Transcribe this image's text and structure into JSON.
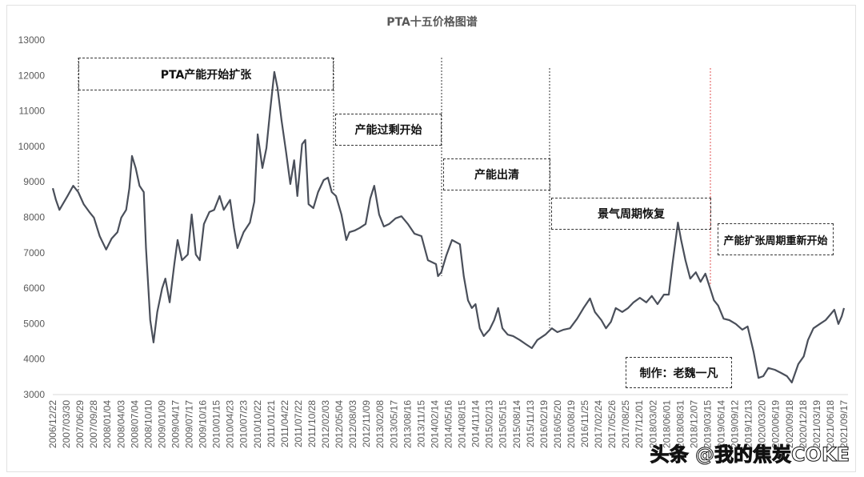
{
  "chart_data": {
    "type": "line",
    "title": "PTA十五价格图谱",
    "xlabel": "",
    "ylabel": "",
    "ylim": [
      3000,
      13000
    ],
    "yticks": [
      3000,
      4000,
      5000,
      6000,
      7000,
      8000,
      9000,
      10000,
      11000,
      12000,
      13000
    ],
    "grid": false,
    "line_color": "#4a4f5a",
    "xtick_labels": [
      "2006/12/22",
      "2007/03/30",
      "2007/06/29",
      "2007/09/28",
      "2008/01/04",
      "2008/04/03",
      "2008/07/04",
      "2008/10/10",
      "2009/01/09",
      "2009/04/17",
      "2009/07/17",
      "2009/10/16",
      "2010/01/15",
      "2010/04/23",
      "2010/07/23",
      "2010/10/22",
      "2011/01/21",
      "2011/04/22",
      "2011/07/22",
      "2011/10/28",
      "2012/02/03",
      "2012/05/04",
      "2012/08/03",
      "2012/11/09",
      "2013/02/08",
      "2013/05/17",
      "2013/08/16",
      "2013/11/15",
      "2014/02/14",
      "2014/05/16",
      "2014/08/15",
      "2014/11/14",
      "2015/02/13",
      "2015/05/15",
      "2015/08/14",
      "2015/11/13",
      "2016/02/19",
      "2016/05/20",
      "2016/08/19",
      "2016/11/25",
      "2017/02/24",
      "2017/05/26",
      "2017/08/25",
      "2017/12/01",
      "2018/03/02",
      "2018/06/01",
      "2018/08/31",
      "2018/12/07",
      "2019/03/15",
      "2019/06/14",
      "2019/09/12",
      "2019/12/13",
      "2020/03/20",
      "2020/06/19",
      "2020/09/18",
      "2020/12/18",
      "2021/03/19",
      "2021/06/18",
      "2021/09/17"
    ],
    "series": [
      {
        "x": [
          "2006/12/22",
          "2007/01/12",
          "2007/02/05",
          "2007/04/01",
          "2007/05/10",
          "2007/06/13",
          "2007/07/20",
          "2007/08/28",
          "2007/09/28",
          "2007/11/06",
          "2007/12/20",
          "2008/01/26",
          "2008/03/06",
          "2008/04/01",
          "2008/05/04",
          "2008/05/26",
          "2008/06/13",
          "2008/07/08",
          "2008/08/03",
          "2008/09/01",
          "2008/09/16",
          "2008/10/15",
          "2008/11/06",
          "2008/12/02",
          "2009/01/04",
          "2009/01/26",
          "2009/02/24",
          "2009/03/28",
          "2009/04/19",
          "2009/05/19",
          "2009/06/27",
          "2009/07/24",
          "2009/08/21",
          "2009/09/17",
          "2009/10/15",
          "2009/11/21",
          "2009/12/24",
          "2010/01/30",
          "2010/02/27",
          "2010/04/11",
          "2010/05/08",
          "2010/05/31",
          "2010/07/12",
          "2010/08/24",
          "2010/09/23",
          "2010/10/16",
          "2010/11/17",
          "2010/12/14",
          "2011/01/08",
          "2011/02/06",
          "2011/02/28",
          "2011/03/27",
          "2011/04/27",
          "2011/05/26",
          "2011/06/21",
          "2011/07/13",
          "2011/08/14",
          "2011/09/05",
          "2011/09/27",
          "2011/10/30",
          "2011/12/01",
          "2012/01/08",
          "2012/02/06",
          "2012/03/03",
          "2012/04/01",
          "2012/05/08",
          "2012/06/10",
          "2012/07/01",
          "2012/08/08",
          "2012/09/09",
          "2012/10/19",
          "2012/11/20",
          "2012/12/17",
          "2013/01/19",
          "2013/02/20",
          "2013/03/28",
          "2013/05/11",
          "2013/06/20",
          "2013/08/03",
          "2013/09/16",
          "2013/11/03",
          "2013/12/17",
          "2014/02/10",
          "2014/02/24",
          "2014/03/18",
          "2014/04/20",
          "2014/05/30",
          "2014/07/23",
          "2014/08/18",
          "2014/09/16",
          "2014/10/12",
          "2014/11/06",
          "2014/12/05",
          "2015/01/01",
          "2015/02/09",
          "2015/03/13",
          "2015/04/09",
          "2015/05/08",
          "2015/06/13",
          "2015/07/20",
          "2015/09/03",
          "2015/10/15",
          "2015/11/24",
          "2016/01/01",
          "2016/02/24",
          "2016/04/08",
          "2016/05/16",
          "2016/06/28",
          "2016/08/10",
          "2016/09/27",
          "2016/11/10",
          "2016/12/24",
          "2017/01/26",
          "2017/03/11",
          "2017/04/12",
          "2017/05/15",
          "2017/06/17",
          "2017/07/31",
          "2017/09/09",
          "2017/10/16",
          "2017/11/28",
          "2018/01/11",
          "2018/02/17",
          "2018/03/28",
          "2018/05/11",
          "2018/06/13",
          "2018/07/08",
          "2018/08/14",
          "2018/09/05",
          "2018/10/04",
          "2018/11/06",
          "2018/12/14",
          "2019/01/15",
          "2019/02/17",
          "2019/03/21",
          "2019/04/16",
          "2019/05/15",
          "2019/06/21",
          "2019/07/30",
          "2019/09/12",
          "2019/10/26",
          "2019/12/01",
          "2020/01/11",
          "2020/02/13",
          "2020/03/17",
          "2020/04/20",
          "2020/06/03",
          "2020/07/16",
          "2020/08/25",
          "2020/09/27",
          "2020/11/10",
          "2020/12/17",
          "2021/01/15",
          "2021/02/21",
          "2021/04/05",
          "2021/05/15",
          "2021/06/17",
          "2021/07/13",
          "2021/08/10",
          "2021/09/02",
          "2021/09/17"
        ],
        "values": [
          8820,
          8490,
          8210,
          8600,
          8890,
          8710,
          8370,
          8150,
          7990,
          7470,
          7090,
          7400,
          7580,
          7990,
          8210,
          8820,
          9730,
          9390,
          8890,
          8710,
          7130,
          5100,
          4470,
          5330,
          6000,
          6270,
          5600,
          6680,
          7360,
          6790,
          6950,
          8080,
          6950,
          6790,
          7810,
          8150,
          8210,
          8600,
          8210,
          8490,
          7700,
          7130,
          7580,
          7850,
          8440,
          10340,
          9390,
          9950,
          10970,
          12100,
          11650,
          10740,
          9840,
          8940,
          9610,
          8600,
          10060,
          10180,
          8370,
          8260,
          8710,
          9050,
          9120,
          8710,
          8600,
          8080,
          7360,
          7580,
          7630,
          7700,
          7810,
          8530,
          8890,
          8080,
          7740,
          7810,
          7970,
          8030,
          7810,
          7540,
          7470,
          6790,
          6680,
          6340,
          6450,
          6910,
          7360,
          7240,
          6340,
          5660,
          5440,
          5550,
          4870,
          4650,
          4830,
          5100,
          5440,
          4870,
          4690,
          4650,
          4540,
          4420,
          4310,
          4540,
          4690,
          4870,
          4760,
          4830,
          4870,
          5140,
          5440,
          5710,
          5330,
          5100,
          4870,
          5050,
          5440,
          5330,
          5440,
          5600,
          5730,
          5600,
          5780,
          5550,
          5820,
          5820,
          6680,
          7850,
          7360,
          6790,
          6270,
          6450,
          6180,
          6410,
          6000,
          5660,
          5510,
          5140,
          5100,
          4990,
          4830,
          4920,
          4200,
          3470,
          3520,
          3750,
          3700,
          3610,
          3520,
          3340,
          3860,
          4080,
          4540,
          4870,
          4990,
          5100,
          5260,
          5390,
          4990,
          5210,
          5440
        ]
      }
    ],
    "annotations": [
      "PTA产能开始扩张",
      "产能过剩开始",
      "产能出清",
      "景气周期恢复",
      "产能扩张周期重新开始",
      "制作：老魏一凡"
    ],
    "annotation_divider_colors": [
      "#333333",
      "#333333",
      "#333333",
      "#333333",
      "#e05050"
    ]
  },
  "watermark": "头条 @我的焦炭COKE"
}
